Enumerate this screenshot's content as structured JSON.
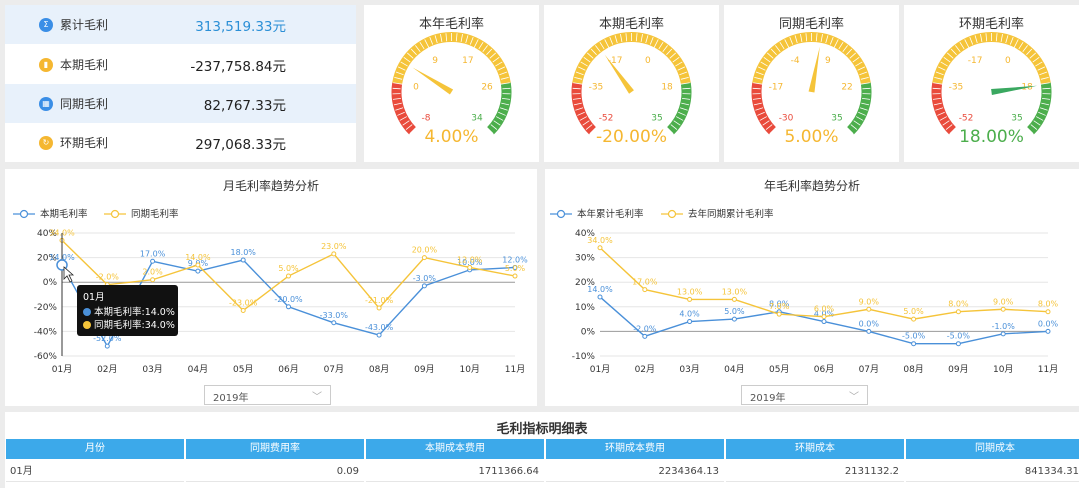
{
  "kpis": [
    {
      "label": "累计毛利",
      "value": "313,519.33元",
      "color": "#3a8ee6",
      "highlight": true,
      "icon": "sigma-icon"
    },
    {
      "label": "本期毛利",
      "value": "-237,758.84元",
      "color": "#f5b731",
      "highlight": false,
      "icon": "bar-chart-icon"
    },
    {
      "label": "同期毛利",
      "value": "82,767.33元",
      "color": "#3a8ee6",
      "highlight": false,
      "icon": "calendar-icon"
    },
    {
      "label": "环期毛利",
      "value": "297,068.33元",
      "color": "#f5b731",
      "highlight": false,
      "icon": "refresh-icon"
    }
  ],
  "gauges": [
    {
      "title": "本年毛利率",
      "value": 4,
      "display": "4.00%",
      "value_color": "#f5b731",
      "needle_color": "#f5c43a",
      "min": -8,
      "max": 34,
      "ticks": [
        "-8",
        "0",
        "9",
        "17",
        "26",
        "34"
      ]
    },
    {
      "title": "本期毛利率",
      "value": -20,
      "display": "-20.00%",
      "value_color": "#f5b731",
      "needle_color": "#f5c43a",
      "min": -52,
      "max": 35,
      "ticks": [
        "-52",
        "-35",
        "-17",
        "0",
        "18",
        "35"
      ]
    },
    {
      "title": "同期毛利率",
      "value": 5,
      "display": "5.00%",
      "value_color": "#f5b731",
      "needle_color": "#f5c43a",
      "min": -30,
      "max": 35,
      "ticks": [
        "-30",
        "-17",
        "-4",
        "9",
        "22",
        "35"
      ]
    },
    {
      "title": "环期毛利率",
      "value": 18,
      "display": "18.00%",
      "value_color": "#4cae4c",
      "needle_color": "#3aa860",
      "min": -52,
      "max": 35,
      "ticks": [
        "-52",
        "-35",
        "-17",
        "0",
        "18",
        "35"
      ]
    }
  ],
  "chart_data": [
    {
      "type": "line",
      "title": "月毛利率趋势分析",
      "categories": [
        "01月",
        "02月",
        "03月",
        "04月",
        "05月",
        "06月",
        "07月",
        "08月",
        "09月",
        "10月",
        "11月"
      ],
      "ylim": [
        -60,
        40
      ],
      "yticks": [
        "40%",
        "20%",
        "0%",
        "-20%",
        "-40%",
        "-60%"
      ],
      "series": [
        {
          "name": "本期毛利率",
          "color": "#4a90d9",
          "values": [
            14,
            -52,
            17,
            9,
            18,
            -20,
            -33,
            -43,
            -3,
            10,
            12
          ],
          "labels": [
            "14.0%",
            "-52.0%",
            "17.0%",
            "9.0%",
            "18.0%",
            "-20.0%",
            "-33.0%",
            "-43.0%",
            "-3.0%",
            "10.0%",
            "12.0%"
          ]
        },
        {
          "name": "同期毛利率",
          "color": "#f5c43a",
          "values": [
            34,
            -2,
            2,
            14,
            -23,
            5,
            23,
            -21,
            20,
            12,
            5
          ],
          "labels": [
            "34.0%",
            "-2.0%",
            "2.0%",
            "14.0%",
            "-23.0%",
            "5.0%",
            "23.0%",
            "-21.0%",
            "20.0%",
            "12.0%",
            "5.0%"
          ]
        }
      ],
      "tooltip": {
        "title": "01月",
        "lines": [
          "本期毛利率:14.0%",
          "同期毛利率:34.0%"
        ]
      },
      "year_select": "2019年"
    },
    {
      "type": "line",
      "title": "年毛利率趋势分析",
      "categories": [
        "01月",
        "02月",
        "03月",
        "04月",
        "05月",
        "06月",
        "07月",
        "08月",
        "09月",
        "10月",
        "11月"
      ],
      "ylim": [
        -10,
        40
      ],
      "yticks": [
        "40%",
        "30%",
        "20%",
        "10%",
        "0%",
        "-10%"
      ],
      "series": [
        {
          "name": "本年累计毛利率",
          "color": "#4a90d9",
          "values": [
            14,
            -2,
            4,
            5,
            8,
            4,
            0,
            -5,
            -5,
            -1,
            0
          ],
          "labels": [
            "14.0%",
            "-2.0%",
            "4.0%",
            "5.0%",
            "8.0%",
            "4.0%",
            "0.0%",
            "-5.0%",
            "-5.0%",
            "-1.0%",
            "0.0%"
          ]
        },
        {
          "name": "去年同期累计毛利率",
          "color": "#f5c43a",
          "values": [
            34,
            17,
            13,
            13,
            7,
            6,
            9,
            5,
            8,
            9,
            8
          ],
          "labels": [
            "34.0%",
            "17.0%",
            "13.0%",
            "13.0%",
            "7.0%",
            "6.0%",
            "9.0%",
            "5.0%",
            "8.0%",
            "9.0%",
            "8.0%"
          ]
        }
      ],
      "year_select": "2019年"
    }
  ],
  "table": {
    "title": "毛利指标明细表",
    "headers": [
      "月份",
      "同期费用率",
      "本期成本费用",
      "环期成本费用",
      "环期成本",
      "同期成本"
    ],
    "rows": [
      [
        "01月",
        "0.09",
        "1711366.64",
        "2234364.13",
        "2131132.2",
        "841334.31"
      ]
    ]
  }
}
